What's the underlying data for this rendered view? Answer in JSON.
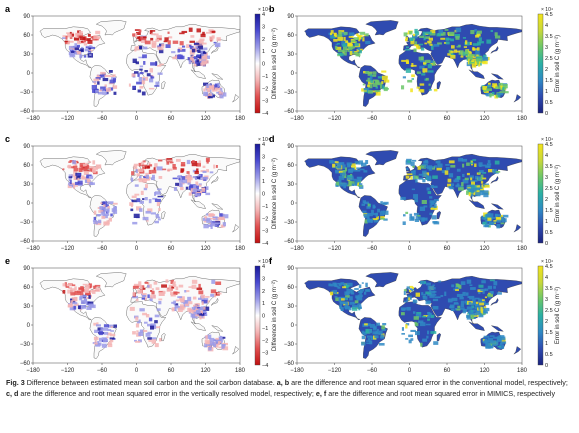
{
  "figure": {
    "panels": [
      {
        "letter": "a",
        "kind": "diff",
        "cbar_label": "Difference in soil C (g m⁻²)",
        "exp": "× 10⁴",
        "cbar_ticks": [
          "4",
          "3",
          "2",
          "1",
          "0",
          "−1",
          "−2",
          "−3",
          "−4"
        ]
      },
      {
        "letter": "b",
        "kind": "err",
        "cbar_label": "Error in soil C (g m⁻²)",
        "exp": "× 10⁴",
        "cbar_ticks": [
          "4.5",
          "4",
          "3.5",
          "3",
          "2.5",
          "2",
          "1.5",
          "1",
          "0.5",
          "0"
        ]
      },
      {
        "letter": "c",
        "kind": "diff",
        "cbar_label": "Difference in soil C (g m⁻²)",
        "exp": "× 10⁴",
        "cbar_ticks": [
          "4",
          "3",
          "2",
          "1",
          "0",
          "−1",
          "−2",
          "−3",
          "−4"
        ]
      },
      {
        "letter": "d",
        "kind": "err",
        "cbar_label": "Error in soil C (g m⁻²)",
        "exp": "× 10⁴",
        "cbar_ticks": [
          "4.5",
          "4",
          "3.5",
          "3",
          "2.5",
          "2",
          "1.5",
          "1",
          "0.5",
          "0"
        ]
      },
      {
        "letter": "e",
        "kind": "diff",
        "cbar_label": "Difference in soil C (g m⁻²)",
        "exp": "× 10⁴",
        "cbar_ticks": [
          "4",
          "3",
          "2",
          "1",
          "0",
          "−1",
          "−2",
          "−3",
          "−4"
        ]
      },
      {
        "letter": "f",
        "kind": "err",
        "cbar_label": "Error in soil C (g m⁻²)",
        "exp": "× 10⁴",
        "cbar_ticks": [
          "4.5",
          "4",
          "3.5",
          "3",
          "2.5",
          "2",
          "1.5",
          "1",
          "0.5",
          "0"
        ]
      }
    ],
    "x_ticks": [
      "−180",
      "−120",
      "−60",
      "0",
      "60",
      "120",
      "180"
    ],
    "y_ticks": [
      "90",
      "60",
      "30",
      "0",
      "−30",
      "−60"
    ],
    "colors": {
      "diff_scale": [
        "#1a1a9a",
        "#4a4ad0",
        "#9a9ae8",
        "#ffffff",
        "#f4b4b4",
        "#e05050",
        "#c01010"
      ],
      "err_scale": [
        "#1a237e",
        "#2f4bb0",
        "#2f89c4",
        "#2bb0a4",
        "#6cc76a",
        "#c8d83c",
        "#f2e41c"
      ]
    }
  },
  "caption": {
    "label": "Fig. 3",
    "text1": " Difference between estimated mean soil carbon and the soil carbon database. ",
    "b1": "a, b",
    "text2": " are the difference and root mean squared error in the conventional model, respectively; ",
    "b2": "c, d",
    "text3": " are the difference and root mean squared error in the vertically resolved model, respectively; ",
    "b3": "e, f",
    "text4": " are the difference and root mean squared error in MIMICS, respectively"
  }
}
